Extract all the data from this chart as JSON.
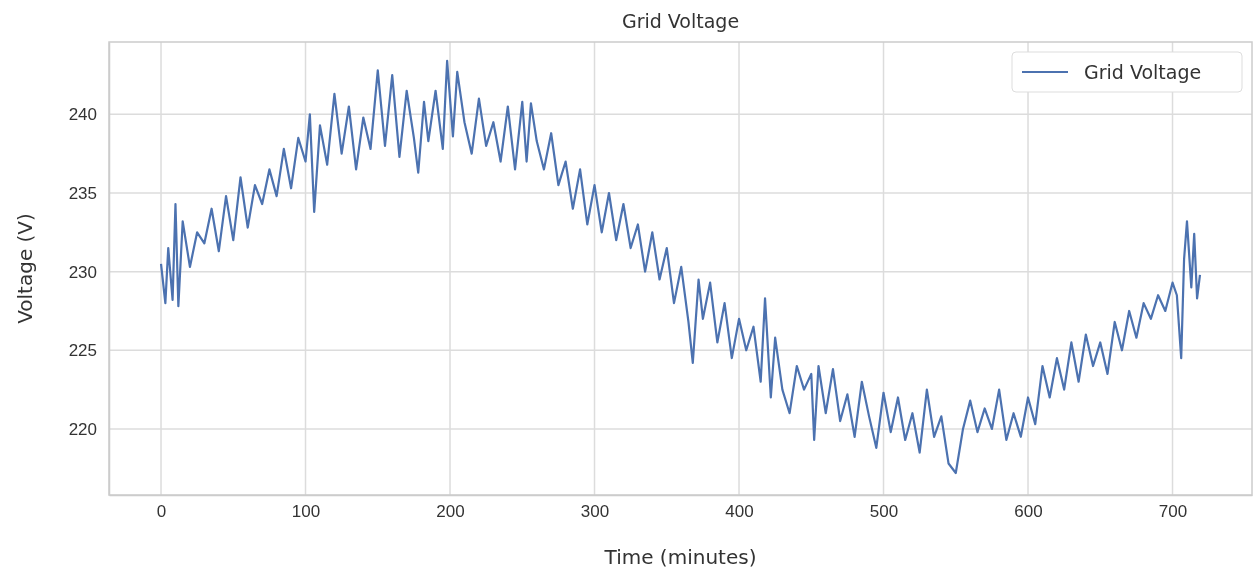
{
  "chart_data": {
    "type": "line",
    "title": "Grid Voltage",
    "xlabel": "Time (minutes)",
    "ylabel": "Voltage (V)",
    "xlim": [
      -36,
      755
    ],
    "ylim": [
      215.8,
      244.6
    ],
    "xticks": [
      0,
      100,
      200,
      300,
      400,
      500,
      600,
      700
    ],
    "yticks": [
      220,
      225,
      230,
      235,
      240
    ],
    "grid": true,
    "legend": "top right",
    "line_style": "solid",
    "series": [
      {
        "name": "Grid Voltage",
        "color": "#4c72b0",
        "x": [
          0,
          3,
          5,
          8,
          10,
          12,
          15,
          20,
          25,
          30,
          35,
          40,
          45,
          50,
          55,
          60,
          65,
          70,
          75,
          80,
          85,
          90,
          95,
          100,
          103,
          106,
          110,
          115,
          120,
          125,
          130,
          135,
          140,
          145,
          150,
          155,
          160,
          165,
          170,
          175,
          178,
          182,
          185,
          190,
          195,
          198,
          202,
          205,
          210,
          215,
          220,
          225,
          230,
          235,
          240,
          245,
          250,
          253,
          256,
          260,
          265,
          270,
          275,
          280,
          285,
          290,
          295,
          300,
          305,
          310,
          315,
          320,
          325,
          330,
          335,
          340,
          345,
          350,
          355,
          360,
          365,
          368,
          372,
          375,
          380,
          385,
          390,
          395,
          400,
          405,
          410,
          415,
          418,
          422,
          425,
          430,
          435,
          440,
          445,
          450,
          452,
          455,
          460,
          465,
          470,
          475,
          480,
          485,
          490,
          495,
          500,
          505,
          510,
          515,
          520,
          525,
          530,
          535,
          540,
          545,
          550,
          555,
          560,
          565,
          570,
          575,
          580,
          585,
          590,
          595,
          600,
          605,
          610,
          615,
          620,
          625,
          630,
          635,
          640,
          645,
          650,
          655,
          660,
          665,
          670,
          675,
          680,
          685,
          690,
          695,
          700,
          703,
          706,
          708,
          710,
          713,
          715,
          717,
          719
        ],
        "values": [
          230.5,
          228.0,
          231.5,
          228.2,
          234.3,
          227.8,
          233.2,
          230.3,
          232.5,
          231.8,
          234.0,
          231.3,
          234.8,
          232.0,
          236.0,
          232.8,
          235.5,
          234.3,
          236.5,
          234.8,
          237.8,
          235.3,
          238.5,
          237.0,
          240.0,
          233.8,
          239.3,
          236.8,
          241.3,
          237.5,
          240.5,
          236.5,
          239.8,
          237.8,
          242.8,
          238.0,
          242.5,
          237.3,
          241.5,
          238.5,
          236.3,
          240.8,
          238.3,
          241.5,
          237.8,
          243.4,
          238.6,
          242.7,
          239.5,
          237.5,
          241.0,
          238.0,
          239.5,
          237.0,
          240.5,
          236.5,
          240.8,
          237.0,
          240.7,
          238.3,
          236.5,
          238.8,
          235.5,
          237.0,
          234.0,
          236.5,
          233.0,
          235.5,
          232.5,
          235.0,
          232.0,
          234.3,
          231.5,
          233.0,
          230.0,
          232.5,
          229.5,
          231.5,
          228.0,
          230.3,
          226.8,
          224.2,
          229.5,
          227.0,
          229.3,
          225.5,
          228.0,
          224.5,
          227.0,
          225.0,
          226.5,
          223.0,
          228.3,
          222.0,
          225.8,
          222.5,
          221.0,
          224.0,
          222.5,
          223.5,
          219.3,
          224.0,
          221.0,
          223.8,
          220.5,
          222.2,
          219.5,
          223.0,
          220.8,
          218.8,
          222.3,
          219.8,
          222.0,
          219.3,
          221.0,
          218.5,
          222.5,
          219.5,
          220.8,
          217.8,
          217.2,
          220.0,
          221.8,
          219.8,
          221.3,
          220.0,
          222.5,
          219.3,
          221.0,
          219.5,
          222.0,
          220.3,
          224.0,
          222.0,
          224.5,
          222.5,
          225.5,
          223.0,
          226.0,
          224.0,
          225.5,
          223.5,
          226.8,
          225.0,
          227.5,
          225.8,
          228.0,
          227.0,
          228.5,
          227.5,
          229.3,
          228.5,
          224.5,
          230.8,
          233.2,
          229.0,
          232.4,
          228.3,
          229.8
        ]
      }
    ]
  }
}
